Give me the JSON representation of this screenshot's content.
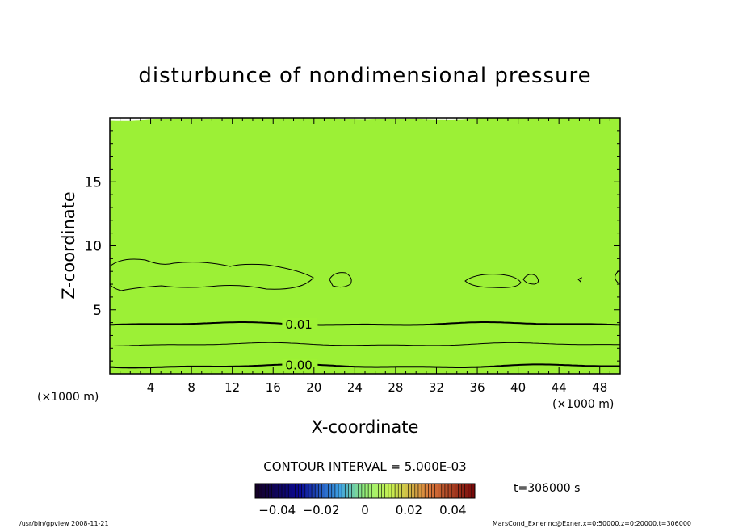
{
  "chart_data": {
    "type": "heatmap",
    "title": "disturbunce of nondimensional pressure",
    "xlabel": "X-coordinate",
    "ylabel": "Z-coordinate",
    "x_unit_left": "(×1000 m)",
    "x_unit_right": "(×1000 m)",
    "xlim": [
      0,
      50
    ],
    "ylim": [
      0,
      20
    ],
    "x_ticks": [
      4,
      8,
      12,
      16,
      20,
      24,
      28,
      32,
      36,
      40,
      44,
      48
    ],
    "y_ticks": [
      5,
      10,
      15
    ],
    "contour_labels": [
      {
        "text": "0.01",
        "x": 17.2,
        "z": 3.8
      },
      {
        "text": "0.00",
        "x": 17.2,
        "z": 0.6
      }
    ],
    "contour_interval": "CONTOUR INTERVAL = 5.000E-03",
    "colorbar_ticks": [
      "−0.04",
      "−0.02",
      "0",
      "0.02",
      "0.04"
    ],
    "colorbar_range": [
      -0.05,
      0.05
    ],
    "time_label": "t=306000 s",
    "bands": [
      {
        "z0": 0.0,
        "z1": 0.7,
        "color": "#22ee22"
      },
      {
        "z0": 0.7,
        "z1": 1.5,
        "color": "#44f02a"
      },
      {
        "z0": 1.5,
        "z1": 2.3,
        "color": "#5ef22e"
      },
      {
        "z0": 2.3,
        "z1": 3.1,
        "color": "#7af232"
      },
      {
        "z0": 3.1,
        "z1": 3.9,
        "color": "#94f434"
      },
      {
        "z0": 3.9,
        "z1": 5.0,
        "color": "#a8f432"
      },
      {
        "z0": 5.0,
        "z1": 6.4,
        "color": "#b6f630"
      },
      {
        "z0": 6.4,
        "z1": 9.0,
        "color": "#c0f82c"
      },
      {
        "z0": 9.0,
        "z1": 11.5,
        "color": "#b4f430"
      },
      {
        "z0": 11.5,
        "z1": 14.5,
        "color": "#a6f234"
      },
      {
        "z0": 14.5,
        "z1": 20.0,
        "color": "#9cf036"
      }
    ],
    "contour_lines": [
      {
        "z": 0.6,
        "width": 2
      },
      {
        "z": 2.3,
        "width": 1
      },
      {
        "z": 3.9,
        "width": 2
      }
    ]
  },
  "footer": {
    "left": "/usr/bin/gpview   2008-11-21",
    "right": "MarsCond_Exner.nc@Exner,x=0:50000,z=0:20000,t=306000"
  }
}
